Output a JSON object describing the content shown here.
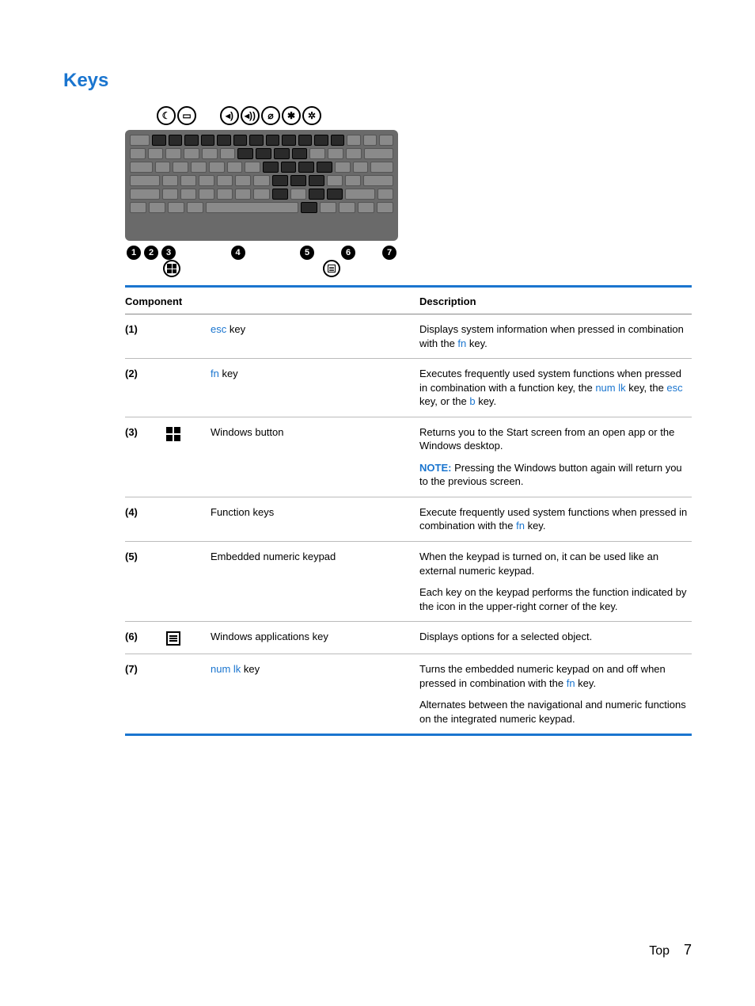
{
  "title": "Keys",
  "colors": {
    "accent": "#1a75cf",
    "text": "#000000",
    "bg": "#ffffff",
    "keyboard_bg": "#6a6a6a",
    "key_bg": "#8a8a8a",
    "key_dark": "#2a2a2a",
    "border_light": "#bbbbbb"
  },
  "header": {
    "col1": "Component",
    "col2": "Description"
  },
  "rows": [
    {
      "num": "(1)",
      "icon": "",
      "comp_pre": "esc",
      "comp_post": " key",
      "desc": [
        {
          "parts": [
            "Displays system information when pressed in combination with the ",
            {
              "link": "fn"
            },
            " key."
          ]
        }
      ]
    },
    {
      "num": "(2)",
      "icon": "",
      "comp_pre": "fn",
      "comp_post": " key",
      "desc": [
        {
          "parts": [
            "Executes frequently used system functions when pressed in combination with a function key, the ",
            {
              "link": "num lk"
            },
            " key, the ",
            {
              "link": "esc"
            },
            " key, or the ",
            {
              "link": "b"
            },
            " key."
          ]
        }
      ]
    },
    {
      "num": "(3)",
      "icon": "windows",
      "comp_plain": "Windows button",
      "desc": [
        {
          "parts": [
            "Returns you to the Start screen from an open app or the Windows desktop."
          ]
        },
        {
          "note": "NOTE:",
          "parts": [
            "Pressing the Windows button again will return you to the previous screen."
          ]
        }
      ]
    },
    {
      "num": "(4)",
      "icon": "",
      "comp_plain": "Function keys",
      "desc": [
        {
          "parts": [
            "Execute frequently used system functions when pressed in combination with the ",
            {
              "link": "fn"
            },
            " key."
          ]
        }
      ]
    },
    {
      "num": "(5)",
      "icon": "",
      "comp_plain": "Embedded numeric keypad",
      "desc": [
        {
          "parts": [
            "When the keypad is turned on, it can be used like an external numeric keypad."
          ]
        },
        {
          "parts": [
            "Each key on the keypad performs the function indicated by the icon in the upper-right corner of the key."
          ]
        }
      ]
    },
    {
      "num": "(6)",
      "icon": "menu",
      "comp_plain": "Windows applications key",
      "desc": [
        {
          "parts": [
            "Displays options for a selected object."
          ]
        }
      ]
    },
    {
      "num": "(7)",
      "icon": "",
      "comp_pre": "num lk",
      "comp_post": " key",
      "desc": [
        {
          "parts": [
            "Turns the embedded numeric keypad on and off when pressed in combination with the ",
            {
              "link": "fn"
            },
            " key."
          ]
        },
        {
          "parts": [
            "Alternates between the navigational and numeric functions on the integrated numeric keypad."
          ]
        }
      ]
    }
  ],
  "top_icons": [
    "moon",
    "display",
    "gap",
    "vol-down",
    "vol-up",
    "mic-mute",
    "bright-down",
    "bright-up"
  ],
  "callouts": [
    "1",
    "2",
    "3",
    "4",
    "5",
    "6",
    "7"
  ],
  "footer": {
    "label": "Top",
    "page": "7"
  }
}
